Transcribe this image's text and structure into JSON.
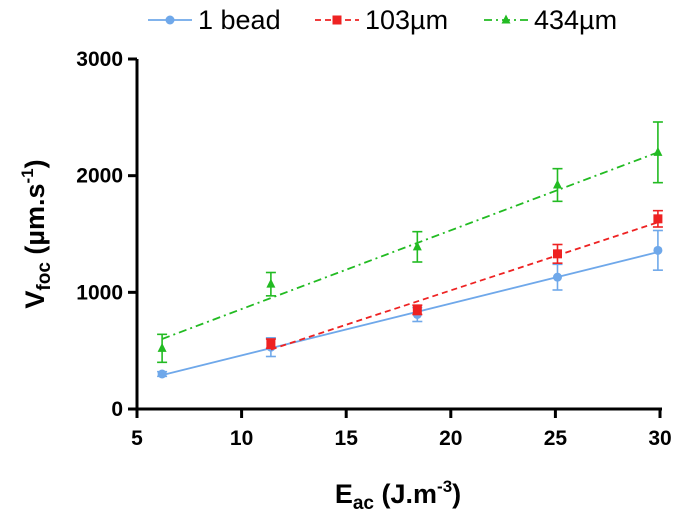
{
  "chart_data": {
    "type": "scatter",
    "xlabel": {
      "main": "E",
      "sub": "ac",
      "rest": " (J.m",
      "sup": "-3",
      "close": ")"
    },
    "ylabel": {
      "main": "V",
      "sub": "foc",
      "rest": " (µm.s",
      "sup": "-1",
      "close": ")"
    },
    "xlim": [
      5,
      30
    ],
    "ylim": [
      0,
      3000
    ],
    "xticks": [
      5,
      10,
      15,
      20,
      25,
      30
    ],
    "yticks": [
      0,
      1000,
      2000,
      3000
    ],
    "grid": false,
    "legend_position": "top",
    "series": [
      {
        "name": "1 bead",
        "color": "#6fa8ea",
        "marker": "circle",
        "line_style": "solid",
        "x": [
          6.2,
          11.4,
          18.4,
          25.1,
          29.9
        ],
        "y": [
          300,
          530,
          810,
          1130,
          1360
        ],
        "error": [
          20,
          80,
          60,
          110,
          170
        ],
        "fit": [
          [
            6.2,
            290
          ],
          [
            29.9,
            1345
          ]
        ]
      },
      {
        "name": "103µm",
        "color": "#ee2222",
        "marker": "square",
        "line_style": "dashed",
        "x": [
          11.4,
          18.4,
          25.1,
          29.9
        ],
        "y": [
          560,
          850,
          1330,
          1630
        ],
        "error": [
          40,
          40,
          80,
          70
        ],
        "fit": [
          [
            11.4,
            510
          ],
          [
            29.9,
            1600
          ]
        ]
      },
      {
        "name": "434µm",
        "color": "#22bb22",
        "marker": "triangle",
        "line_style": "dashdot",
        "x": [
          6.2,
          11.4,
          18.4,
          25.1,
          29.9
        ],
        "y": [
          520,
          1070,
          1390,
          1920,
          2200
        ],
        "error": [
          120,
          100,
          130,
          140,
          260
        ],
        "fit": [
          [
            6.2,
            600
          ],
          [
            29.9,
            2200
          ]
        ]
      }
    ]
  }
}
